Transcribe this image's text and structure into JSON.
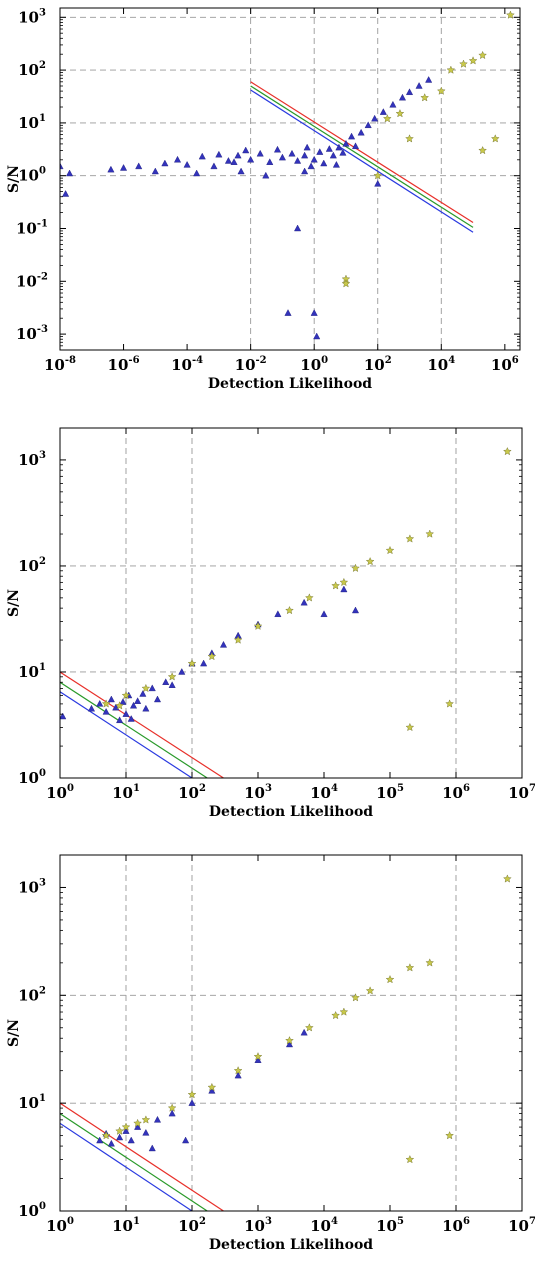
{
  "chart_data": [
    {
      "type": "scatter",
      "xlabel": "Detection Likelihood",
      "ylabel": "S/N",
      "x_scale": "log",
      "y_scale": "log",
      "xlim": [
        1e-08,
        3000000.0
      ],
      "ylim": [
        0.0005,
        1500
      ],
      "x_ticks": [
        1e-08,
        1e-06,
        0.0001,
        0.01,
        1,
        100,
        10000.0,
        1000000.0
      ],
      "x_tick_labels": [
        [
          "10",
          "-8"
        ],
        [
          "10",
          "-6"
        ],
        [
          "10",
          "-4"
        ],
        [
          "10",
          "-2"
        ],
        [
          "10",
          "0"
        ],
        [
          "10",
          "2"
        ],
        [
          "10",
          "4"
        ],
        [
          "10",
          "6"
        ]
      ],
      "y_ticks": [
        0.001,
        0.01,
        0.1,
        1,
        10,
        100,
        1000
      ],
      "y_tick_labels": [
        [
          "10",
          "-3"
        ],
        [
          "10",
          "-2"
        ],
        [
          "10",
          "-1"
        ],
        [
          "10",
          "0"
        ],
        [
          "10",
          "1"
        ],
        [
          "10",
          "2"
        ],
        [
          "10",
          "3"
        ]
      ],
      "grid": true,
      "grid_x": [
        0.01,
        1,
        100,
        10000.0
      ],
      "grid_y": [
        1,
        10,
        100,
        1000
      ],
      "lines": [
        {
          "color": "#e8302a",
          "x": [
            0.01,
            100000.0
          ],
          "y": [
            60,
            0.13
          ]
        },
        {
          "color": "#2a9a2a",
          "x": [
            0.01,
            100000.0
          ],
          "y": [
            50,
            0.105
          ]
        },
        {
          "color": "#2a3ae0",
          "x": [
            0.01,
            100000.0
          ],
          "y": [
            42,
            0.085
          ]
        }
      ],
      "series": [
        {
          "marker": "triangle",
          "color": "#3333bb",
          "points": [
            [
              1e-08,
              1.5
            ],
            [
              1.5e-08,
              0.45
            ],
            [
              2e-08,
              1.1
            ],
            [
              4e-07,
              1.3
            ],
            [
              1e-06,
              1.4
            ],
            [
              3e-06,
              1.5
            ],
            [
              1e-05,
              1.2
            ],
            [
              2e-05,
              1.7
            ],
            [
              5e-05,
              2.0
            ],
            [
              0.0001,
              1.6
            ],
            [
              0.0003,
              2.3
            ],
            [
              0.0007,
              1.5
            ],
            [
              0.001,
              2.5
            ],
            [
              0.002,
              1.9
            ],
            [
              0.004,
              2.4
            ],
            [
              0.007,
              3.0
            ],
            [
              0.01,
              2.0
            ],
            [
              0.02,
              2.6
            ],
            [
              0.04,
              1.8
            ],
            [
              0.07,
              3.1
            ],
            [
              0.1,
              2.2
            ],
            [
              0.15,
              0.0025
            ],
            [
              0.2,
              2.6
            ],
            [
              0.3,
              1.9
            ],
            [
              0.5,
              2.4
            ],
            [
              0.6,
              3.4
            ],
            [
              0.8,
              1.5
            ],
            [
              1,
              2.0
            ],
            [
              1,
              0.0025
            ],
            [
              1.2,
              0.0009
            ],
            [
              1.5,
              2.8
            ],
            [
              2,
              1.7
            ],
            [
              3,
              3.2
            ],
            [
              4,
              2.4
            ],
            [
              6,
              3.4
            ],
            [
              8,
              2.7
            ],
            [
              10,
              4.0
            ],
            [
              15,
              5.5
            ],
            [
              20,
              3.6
            ],
            [
              30,
              6.5
            ],
            [
              50,
              9.0
            ],
            [
              80,
              12
            ],
            [
              100,
              0.7
            ],
            [
              150,
              16
            ],
            [
              300,
              22
            ],
            [
              600,
              30
            ],
            [
              1000,
              38
            ],
            [
              2000,
              50
            ],
            [
              4000,
              65
            ],
            [
              0.3,
              0.1
            ],
            [
              0.03,
              1.0
            ],
            [
              0.005,
              1.2
            ],
            [
              0.0002,
              1.1
            ],
            [
              0.003,
              1.8
            ],
            [
              0.5,
              1.2
            ],
            [
              5,
              1.6
            ]
          ]
        },
        {
          "marker": "star",
          "color": "#c8c84a",
          "points": [
            [
              10,
              0.011
            ],
            [
              10,
              0.009
            ],
            [
              100,
              1.0
            ],
            [
              1000,
              5
            ],
            [
              10000.0,
              40
            ],
            [
              20000.0,
              100
            ],
            [
              50000.0,
              130
            ],
            [
              100000.0,
              150
            ],
            [
              200000.0,
              190
            ],
            [
              200000.0,
              3
            ],
            [
              500000.0,
              5
            ],
            [
              1500000.0,
              1100
            ],
            [
              500,
              15
            ],
            [
              200,
              12
            ],
            [
              3000,
              30
            ]
          ]
        }
      ]
    },
    {
      "type": "scatter",
      "xlabel": "Detection Likelihood",
      "ylabel": "S/N",
      "x_scale": "log",
      "y_scale": "log",
      "xlim": [
        1,
        10000000.0
      ],
      "ylim": [
        1,
        2000
      ],
      "x_ticks": [
        1,
        10,
        100,
        1000,
        10000.0,
        100000.0,
        1000000.0,
        10000000.0
      ],
      "x_tick_labels": [
        [
          "10",
          "0"
        ],
        [
          "10",
          "1"
        ],
        [
          "10",
          "2"
        ],
        [
          "10",
          "3"
        ],
        [
          "10",
          "4"
        ],
        [
          "10",
          "5"
        ],
        [
          "10",
          "6"
        ],
        [
          "10",
          "7"
        ]
      ],
      "y_ticks": [
        1,
        10,
        100,
        1000
      ],
      "y_tick_labels": [
        [
          "10",
          "0"
        ],
        [
          "10",
          "1"
        ],
        [
          "10",
          "2"
        ],
        [
          "10",
          "3"
        ]
      ],
      "grid": true,
      "grid_x": [
        10,
        100,
        1000000.0
      ],
      "grid_y": [
        10,
        100
      ],
      "lines": [
        {
          "color": "#e8302a",
          "x": [
            1,
            300
          ],
          "y": [
            10,
            1
          ]
        },
        {
          "color": "#2a9a2a",
          "x": [
            1,
            170
          ],
          "y": [
            8,
            1
          ]
        },
        {
          "color": "#2a3ae0",
          "x": [
            1,
            100
          ],
          "y": [
            6.5,
            1
          ]
        }
      ],
      "series": [
        {
          "marker": "triangle",
          "color": "#3333bb",
          "points": [
            [
              1.1,
              3.8
            ],
            [
              3,
              4.5
            ],
            [
              4,
              5
            ],
            [
              5,
              4.2
            ],
            [
              6,
              5.5
            ],
            [
              7,
              4.6
            ],
            [
              8,
              3.5
            ],
            [
              9,
              5.2
            ],
            [
              10,
              4.0
            ],
            [
              11,
              6
            ],
            [
              12,
              3.6
            ],
            [
              13,
              4.8
            ],
            [
              15,
              5.3
            ],
            [
              18,
              6.2
            ],
            [
              20,
              4.5
            ],
            [
              25,
              7
            ],
            [
              30,
              5.5
            ],
            [
              40,
              8
            ],
            [
              50,
              7.5
            ],
            [
              70,
              10
            ],
            [
              100,
              12
            ],
            [
              150,
              12
            ],
            [
              200,
              15
            ],
            [
              300,
              18
            ],
            [
              500,
              22
            ],
            [
              1000,
              28
            ],
            [
              2000,
              35
            ],
            [
              5000,
              45
            ],
            [
              10000.0,
              35
            ],
            [
              20000.0,
              60
            ],
            [
              30000.0,
              38
            ]
          ]
        },
        {
          "marker": "star",
          "color": "#c8c84a",
          "points": [
            [
              5,
              5
            ],
            [
              8,
              4.8
            ],
            [
              10,
              6
            ],
            [
              20,
              7
            ],
            [
              50,
              9
            ],
            [
              100,
              12
            ],
            [
              200,
              14
            ],
            [
              500,
              20
            ],
            [
              1000,
              27
            ],
            [
              3000,
              38
            ],
            [
              6000,
              50
            ],
            [
              15000.0,
              65
            ],
            [
              20000.0,
              70
            ],
            [
              30000.0,
              95
            ],
            [
              50000.0,
              110
            ],
            [
              100000.0,
              140
            ],
            [
              200000.0,
              180
            ],
            [
              200000.0,
              3
            ],
            [
              400000.0,
              200
            ],
            [
              800000.0,
              5
            ],
            [
              6000000.0,
              1200
            ]
          ]
        }
      ]
    },
    {
      "type": "scatter",
      "xlabel": "Detection Likelihood",
      "ylabel": "S/N",
      "x_scale": "log",
      "y_scale": "log",
      "xlim": [
        1,
        10000000.0
      ],
      "ylim": [
        1,
        2000
      ],
      "x_ticks": [
        1,
        10,
        100,
        1000,
        10000.0,
        100000.0,
        1000000.0,
        10000000.0
      ],
      "x_tick_labels": [
        [
          "10",
          "0"
        ],
        [
          "10",
          "1"
        ],
        [
          "10",
          "2"
        ],
        [
          "10",
          "3"
        ],
        [
          "10",
          "4"
        ],
        [
          "10",
          "5"
        ],
        [
          "10",
          "6"
        ],
        [
          "10",
          "7"
        ]
      ],
      "y_ticks": [
        1,
        10,
        100,
        1000
      ],
      "y_tick_labels": [
        [
          "10",
          "0"
        ],
        [
          "10",
          "1"
        ],
        [
          "10",
          "2"
        ],
        [
          "10",
          "3"
        ]
      ],
      "grid": true,
      "grid_x": [
        10,
        100,
        1000000.0
      ],
      "grid_y": [
        10,
        100
      ],
      "lines": [
        {
          "color": "#e8302a",
          "x": [
            1,
            300
          ],
          "y": [
            10,
            1
          ]
        },
        {
          "color": "#2a9a2a",
          "x": [
            1,
            170
          ],
          "y": [
            8,
            1
          ]
        },
        {
          "color": "#2a3ae0",
          "x": [
            1,
            100
          ],
          "y": [
            6.5,
            1
          ]
        }
      ],
      "series": [
        {
          "marker": "triangle",
          "color": "#3333bb",
          "points": [
            [
              4,
              4.5
            ],
            [
              5,
              5.2
            ],
            [
              6,
              4.2
            ],
            [
              8,
              4.8
            ],
            [
              10,
              5.5
            ],
            [
              12,
              4.5
            ],
            [
              15,
              6
            ],
            [
              20,
              5.3
            ],
            [
              25,
              3.8
            ],
            [
              30,
              7
            ],
            [
              50,
              8
            ],
            [
              80,
              4.5
            ],
            [
              100,
              10
            ],
            [
              200,
              13
            ],
            [
              500,
              18
            ],
            [
              1000,
              25
            ],
            [
              3000,
              35
            ],
            [
              5000,
              45
            ]
          ]
        },
        {
          "marker": "star",
          "color": "#c8c84a",
          "points": [
            [
              5,
              5
            ],
            [
              8,
              5.5
            ],
            [
              10,
              6
            ],
            [
              15,
              6.5
            ],
            [
              20,
              7
            ],
            [
              50,
              9
            ],
            [
              100,
              12
            ],
            [
              200,
              14
            ],
            [
              500,
              20
            ],
            [
              1000,
              27
            ],
            [
              3000,
              38
            ],
            [
              6000,
              50
            ],
            [
              15000.0,
              65
            ],
            [
              20000.0,
              70
            ],
            [
              30000.0,
              95
            ],
            [
              50000.0,
              110
            ],
            [
              100000.0,
              140
            ],
            [
              200000.0,
              180
            ],
            [
              200000.0,
              3
            ],
            [
              400000.0,
              200
            ],
            [
              800000.0,
              5
            ],
            [
              6000000.0,
              1200
            ]
          ]
        }
      ]
    }
  ]
}
